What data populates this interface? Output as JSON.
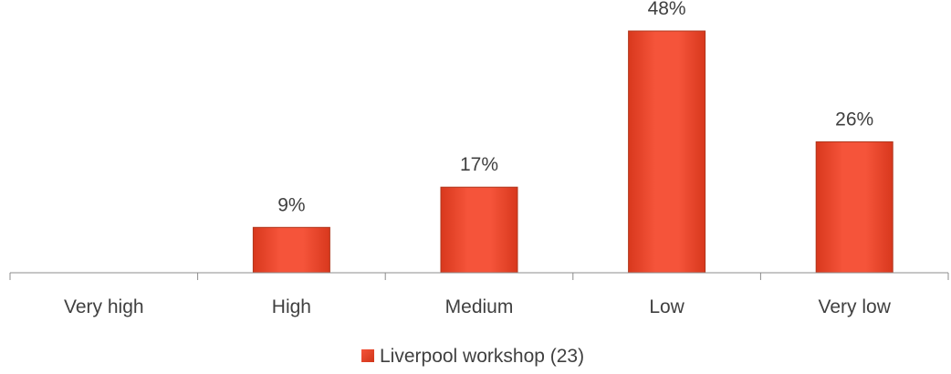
{
  "chart_data": {
    "type": "bar",
    "categories": [
      "Very high",
      "High",
      "Medium",
      "Low",
      "Very low"
    ],
    "series": [
      {
        "name": "Liverpool workshop (23)",
        "values": [
          0,
          9,
          17,
          48,
          26
        ],
        "value_labels": [
          "",
          "9%",
          "17%",
          "48%",
          "26%"
        ],
        "color": "#f14a2c"
      }
    ],
    "title": "",
    "xlabel": "",
    "ylabel": "",
    "ylim": [
      0,
      50
    ],
    "grid": false,
    "legend": "bottom-center"
  }
}
